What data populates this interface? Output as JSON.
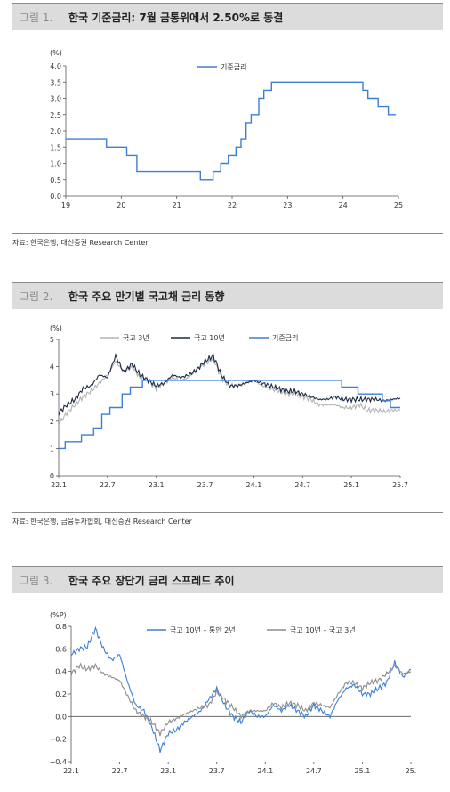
{
  "figures": [
    {
      "number": "그림 1.",
      "title": "한국 기준금리: 7월 금통위에서 2.50%로 동결",
      "source": "자료: 한국은행, 대신증권 Research Center"
    },
    {
      "number": "그림 2.",
      "title": "한국 주요 만기별 국고채 금리 동향",
      "source": "자료: 한국은행, 금융투자협회, 대신증권 Research Center"
    },
    {
      "number": "그림 3.",
      "title": "한국 주요 장단기 금리 스프레드 추이",
      "source": ""
    }
  ],
  "chart_data": [
    {
      "type": "line",
      "unit_label": "(%)",
      "xticks": [
        "19",
        "20",
        "21",
        "22",
        "23",
        "24",
        "25"
      ],
      "yticks": [
        "0.0",
        "0.5",
        "1.0",
        "1.5",
        "2.0",
        "2.5",
        "3.0",
        "3.5",
        "4.0"
      ],
      "ylim": [
        0,
        4.0
      ],
      "xlim": [
        2019.0,
        2025.55
      ],
      "series": [
        {
          "name": "기준금리",
          "color": "#3d7fd6",
          "step": true,
          "x": [
            2019.0,
            2019.55,
            2019.8,
            2020.2,
            2020.4,
            2021.65,
            2021.9,
            2022.05,
            2022.2,
            2022.35,
            2022.45,
            2022.55,
            2022.65,
            2022.8,
            2022.9,
            2023.05,
            2024.85,
            2024.95,
            2025.15,
            2025.35,
            2025.5
          ],
          "y": [
            1.75,
            1.75,
            1.5,
            1.25,
            0.75,
            0.5,
            0.75,
            1.0,
            1.25,
            1.5,
            1.75,
            2.25,
            2.5,
            3.0,
            3.25,
            3.5,
            3.25,
            3.0,
            2.75,
            2.5,
            2.5
          ]
        }
      ]
    },
    {
      "type": "line",
      "unit_label": "(%)",
      "xticks": [
        "22.1",
        "22.7",
        "23.1",
        "23.7",
        "24.1",
        "24.7",
        "25.1",
        "25.7"
      ],
      "yticks": [
        "0",
        "1",
        "2",
        "3",
        "4",
        "5"
      ],
      "ylim": [
        0,
        5
      ],
      "xlim": [
        0,
        42
      ],
      "series": [
        {
          "name": "국고 3년",
          "color": "#b4b4b4",
          "x": [
            0,
            1,
            2,
            3,
            4,
            5,
            6,
            7,
            8,
            9,
            10,
            11,
            12,
            13,
            14,
            15,
            16,
            17,
            18,
            19,
            20,
            21,
            22,
            23,
            24,
            25,
            26,
            27,
            28,
            29,
            30,
            31,
            32,
            33,
            34,
            35,
            36,
            37,
            38,
            39,
            40,
            41,
            42
          ],
          "y": [
            1.9,
            2.3,
            2.6,
            2.9,
            3.1,
            3.4,
            3.7,
            4.2,
            3.8,
            4.0,
            3.6,
            3.5,
            3.2,
            3.4,
            3.6,
            3.5,
            3.6,
            3.9,
            4.1,
            4.3,
            3.6,
            3.3,
            3.3,
            3.4,
            3.5,
            3.3,
            3.2,
            3.1,
            3.0,
            3.0,
            2.9,
            2.8,
            2.6,
            2.6,
            2.6,
            2.5,
            2.5,
            2.6,
            2.4,
            2.4,
            2.35,
            2.4,
            2.4
          ]
        },
        {
          "name": "국고 10년",
          "color": "#1b2a45",
          "x": [
            0,
            1,
            2,
            3,
            4,
            5,
            6,
            7,
            8,
            9,
            10,
            11,
            12,
            13,
            14,
            15,
            16,
            17,
            18,
            19,
            20,
            21,
            22,
            23,
            24,
            25,
            26,
            27,
            28,
            29,
            30,
            31,
            32,
            33,
            34,
            35,
            36,
            37,
            38,
            39,
            40,
            41,
            42
          ],
          "y": [
            2.3,
            2.6,
            2.8,
            3.2,
            3.3,
            3.7,
            3.6,
            4.4,
            3.8,
            4.1,
            3.7,
            3.5,
            3.3,
            3.4,
            3.7,
            3.6,
            3.7,
            3.9,
            4.2,
            4.4,
            3.7,
            3.3,
            3.3,
            3.4,
            3.5,
            3.4,
            3.3,
            3.2,
            3.1,
            3.1,
            3.0,
            2.9,
            2.8,
            2.8,
            2.9,
            2.8,
            2.8,
            2.8,
            2.8,
            2.8,
            2.75,
            2.8,
            2.85
          ]
        },
        {
          "name": "기준금리",
          "color": "#3d7fd6",
          "step": true,
          "x": [
            0,
            0.8,
            2.8,
            4.3,
            5.3,
            6.3,
            7.8,
            8.8,
            10.3,
            11.8,
            33.3,
            34.8,
            36.8,
            39.8,
            40.8,
            42
          ],
          "y": [
            1.0,
            1.25,
            1.5,
            1.75,
            2.25,
            2.5,
            3.0,
            3.25,
            3.5,
            3.5,
            3.5,
            3.25,
            3.0,
            2.75,
            2.5,
            2.5
          ]
        }
      ]
    },
    {
      "type": "line",
      "unit_label": "(%P)",
      "xticks": [
        "22.1",
        "22.7",
        "23.1",
        "23.7",
        "24.1",
        "24.7",
        "25.1",
        "25."
      ],
      "yticks": [
        "0.8",
        "0.6",
        "0.4",
        "0.2",
        "0.0",
        "−0.2",
        "−0.4"
      ],
      "ylim": [
        -0.4,
        0.8
      ],
      "xlim": [
        0,
        42
      ],
      "series": [
        {
          "name": "국고 10년 – 통안 2년",
          "color": "#3d7fd6",
          "x": [
            0,
            1,
            2,
            3,
            4,
            5,
            6,
            7,
            8,
            9,
            10,
            11,
            12,
            13,
            14,
            15,
            16,
            17,
            18,
            19,
            20,
            21,
            22,
            23,
            24,
            25,
            26,
            27,
            28,
            29,
            30,
            31,
            32,
            33,
            34,
            35,
            36,
            37,
            38,
            39,
            40,
            41,
            42
          ],
          "y": [
            0.55,
            0.6,
            0.62,
            0.78,
            0.6,
            0.5,
            0.55,
            0.3,
            0.1,
            0.05,
            -0.1,
            -0.3,
            -0.15,
            -0.12,
            -0.05,
            0.0,
            0.05,
            0.15,
            0.25,
            0.1,
            0.0,
            -0.05,
            0.05,
            0.0,
            0.0,
            0.1,
            0.05,
            0.1,
            0.05,
            0.0,
            0.1,
            0.05,
            0.0,
            0.15,
            0.25,
            0.28,
            0.2,
            0.2,
            0.25,
            0.3,
            0.48,
            0.35,
            0.42
          ]
        },
        {
          "name": "국고 10년 – 국고 3년",
          "color": "#8c8c8c",
          "x": [
            0,
            1,
            2,
            3,
            4,
            5,
            6,
            7,
            8,
            9,
            10,
            11,
            12,
            13,
            14,
            15,
            16,
            17,
            18,
            19,
            20,
            21,
            22,
            23,
            24,
            25,
            26,
            27,
            28,
            29,
            30,
            31,
            32,
            33,
            34,
            35,
            36,
            37,
            38,
            39,
            40,
            41,
            42
          ],
          "y": [
            0.38,
            0.45,
            0.42,
            0.45,
            0.38,
            0.35,
            0.32,
            0.18,
            0.05,
            0.0,
            -0.05,
            -0.15,
            -0.05,
            -0.02,
            0.02,
            0.05,
            0.08,
            0.1,
            0.22,
            0.15,
            0.08,
            0.0,
            0.05,
            0.05,
            0.05,
            0.12,
            0.08,
            0.12,
            0.1,
            0.05,
            0.12,
            0.1,
            0.08,
            0.2,
            0.3,
            0.3,
            0.25,
            0.3,
            0.32,
            0.38,
            0.45,
            0.38,
            0.4
          ]
        }
      ]
    }
  ]
}
